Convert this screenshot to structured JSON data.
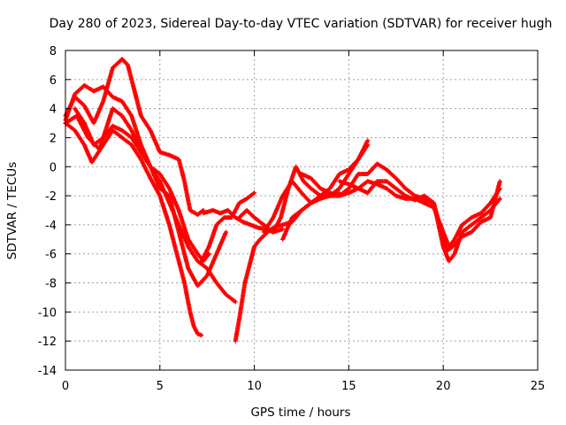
{
  "chart_data": {
    "type": "scatter",
    "title": "Day 280 of 2023, Sidereal Day-to-day VTEC variation (SDTVAR) for receiver hugh",
    "xlabel": "GPS time / hours",
    "ylabel": "SDTVAR / TECUs",
    "xlim": [
      0,
      25
    ],
    "ylim": [
      -14,
      8
    ],
    "xticks": [
      0,
      5,
      10,
      15,
      20,
      25
    ],
    "yticks": [
      -14,
      -12,
      -10,
      -8,
      -6,
      -4,
      -2,
      0,
      2,
      4,
      6,
      8
    ],
    "grid": true,
    "marker": "+",
    "color": "#ff0000",
    "series": [
      {
        "x": [
          0.0,
          0.5,
          1.0,
          1.5,
          2.0,
          2.5,
          3.0,
          3.3,
          3.6,
          4.0,
          4.5,
          5.0,
          5.5,
          6.0,
          6.3,
          6.6,
          7.0,
          7.3
        ],
        "y": [
          3.5,
          4.8,
          4.2,
          3.0,
          4.5,
          6.8,
          7.4,
          7.0,
          5.5,
          3.5,
          2.5,
          1.0,
          0.8,
          0.5,
          -1.0,
          -3.0,
          -3.3,
          -3.0
        ]
      },
      {
        "x": [
          0.0,
          0.5,
          1.0,
          1.5,
          2.0,
          2.5,
          3.0,
          3.5,
          4.0,
          4.5,
          5.0,
          5.5,
          6.0,
          6.5,
          7.0,
          7.3,
          7.6
        ],
        "y": [
          3.2,
          5.0,
          5.6,
          5.2,
          5.5,
          4.8,
          4.5,
          3.5,
          1.5,
          0.0,
          -0.5,
          -1.5,
          -3.0,
          -5.0,
          -6.0,
          -6.5,
          -6.0
        ]
      },
      {
        "x": [
          0.0,
          0.6,
          1.2,
          1.8,
          2.5,
          3.0,
          3.5,
          4.0,
          4.5,
          5.0,
          5.5,
          6.0,
          6.5,
          7.0,
          7.5,
          8.0,
          8.5,
          9.0
        ],
        "y": [
          3.0,
          3.5,
          2.0,
          1.2,
          4.0,
          3.5,
          2.5,
          1.0,
          0.0,
          -1.0,
          -2.5,
          -4.0,
          -5.5,
          -6.5,
          -7.0,
          -8.0,
          -8.8,
          -9.3
        ]
      },
      {
        "x": [
          0.0,
          0.5,
          1.0,
          1.4,
          2.0,
          2.5,
          3.0,
          3.5,
          4.0,
          4.5,
          5.0,
          5.5,
          6.0,
          6.3,
          6.6,
          6.8,
          7.0,
          7.2
        ],
        "y": [
          3.0,
          2.5,
          1.5,
          0.3,
          1.5,
          2.5,
          2.0,
          1.5,
          0.5,
          -0.8,
          -2.0,
          -4.0,
          -6.5,
          -8.0,
          -10.0,
          -11.0,
          -11.5,
          -11.6
        ]
      },
      {
        "x": [
          0.5,
          1.0,
          1.5,
          2.0,
          2.5,
          3.0,
          3.5,
          4.0,
          4.5,
          5.0,
          5.5,
          6.0,
          6.5,
          7.0,
          7.5,
          8.0,
          8.5
        ],
        "y": [
          4.0,
          3.0,
          1.5,
          2.0,
          2.8,
          2.5,
          2.0,
          1.0,
          0.0,
          -1.5,
          -2.0,
          -4.5,
          -7.0,
          -8.2,
          -7.5,
          -6.0,
          -4.5
        ]
      },
      {
        "x": [
          7.2,
          7.6,
          8.0,
          8.4,
          8.8,
          9.2,
          9.6,
          10.0
        ],
        "y": [
          -6.5,
          -5.5,
          -4.0,
          -3.5,
          -3.5,
          -2.5,
          -2.2,
          -1.8
        ]
      },
      {
        "x": [
          7.3,
          7.8,
          8.2,
          8.6,
          9.0,
          9.4,
          9.8,
          10.2,
          10.6,
          11.0,
          11.5
        ],
        "y": [
          -3.2,
          -3.0,
          -3.2,
          -3.0,
          -3.5,
          -3.8,
          -4.0,
          -4.2,
          -4.3,
          -4.5,
          -4.3
        ]
      },
      {
        "x": [
          9.0,
          9.2,
          9.5,
          9.8,
          10.0,
          10.3,
          10.7,
          11.0,
          11.5,
          12.0,
          12.5,
          13.0,
          13.5,
          14.0,
          14.5
        ],
        "y": [
          -12.0,
          -10.5,
          -8.0,
          -6.5,
          -5.5,
          -5.0,
          -4.5,
          -4.2,
          -4.0,
          -3.8,
          -3.0,
          -2.5,
          -2.0,
          -2.0,
          -1.8
        ]
      },
      {
        "x": [
          9.2,
          9.6,
          10.0,
          10.5,
          11.0,
          11.4,
          11.8,
          12.2,
          12.6,
          13.0,
          13.5,
          14.0,
          14.5,
          15.0,
          15.5,
          16.0
        ],
        "y": [
          -3.5,
          -3.0,
          -3.5,
          -4.0,
          -4.5,
          -3.5,
          -1.5,
          0.0,
          -1.0,
          -1.5,
          -2.0,
          -2.0,
          -1.5,
          -0.5,
          0.5,
          1.5
        ]
      },
      {
        "x": [
          10.5,
          11.0,
          11.5,
          12.0,
          12.5,
          13.0,
          13.5,
          14.0,
          14.5,
          15.0,
          15.5,
          16.0
        ],
        "y": [
          -4.5,
          -3.5,
          -2.0,
          -1.0,
          -1.8,
          -2.5,
          -2.0,
          -1.5,
          -0.5,
          -0.2,
          0.5,
          1.8
        ]
      },
      {
        "x": [
          11.5,
          12.0,
          12.5,
          13.0,
          13.5,
          14.0,
          14.5,
          15.0,
          15.5,
          16.0,
          16.5,
          17.0,
          17.5,
          18.0,
          18.5,
          19.0,
          19.5,
          20.0,
          20.3,
          20.6,
          21.0,
          21.5,
          22.0,
          22.5,
          23.0
        ],
        "y": [
          -5.0,
          -3.5,
          -3.0,
          -2.5,
          -2.2,
          -2.0,
          -2.0,
          -1.5,
          -0.5,
          -0.5,
          0.2,
          -0.2,
          -0.8,
          -1.5,
          -2.0,
          -2.2,
          -2.5,
          -5.5,
          -6.5,
          -6.0,
          -4.5,
          -4.0,
          -3.5,
          -3.0,
          -2.2
        ]
      },
      {
        "x": [
          12.5,
          13.0,
          13.5,
          14.0,
          14.5,
          15.0,
          15.5,
          16.0,
          16.5,
          17.0,
          17.5,
          18.0,
          18.5,
          19.0,
          19.5,
          20.0,
          20.3,
          20.6,
          21.0,
          21.5,
          22.0,
          22.5,
          23.0
        ],
        "y": [
          -0.5,
          -0.8,
          -1.5,
          -1.8,
          -2.0,
          -1.8,
          -1.5,
          -1.0,
          -1.2,
          -1.5,
          -2.0,
          -2.2,
          -2.2,
          -2.5,
          -2.8,
          -4.5,
          -5.5,
          -5.0,
          -4.0,
          -3.5,
          -3.2,
          -2.5,
          -1.5
        ]
      },
      {
        "x": [
          14.5,
          15.0,
          15.5,
          16.0,
          16.5,
          17.0,
          17.5,
          18.0,
          18.5,
          19.0,
          19.5,
          20.0,
          20.2,
          20.5,
          21.0,
          21.5,
          22.0,
          22.5,
          22.8,
          23.0
        ],
        "y": [
          -1.0,
          -1.2,
          -1.5,
          -1.8,
          -1.0,
          -1.0,
          -1.5,
          -2.0,
          -2.3,
          -2.0,
          -2.5,
          -5.0,
          -5.8,
          -5.5,
          -4.8,
          -4.5,
          -3.8,
          -3.5,
          -2.0,
          -1.0
        ]
      }
    ]
  }
}
